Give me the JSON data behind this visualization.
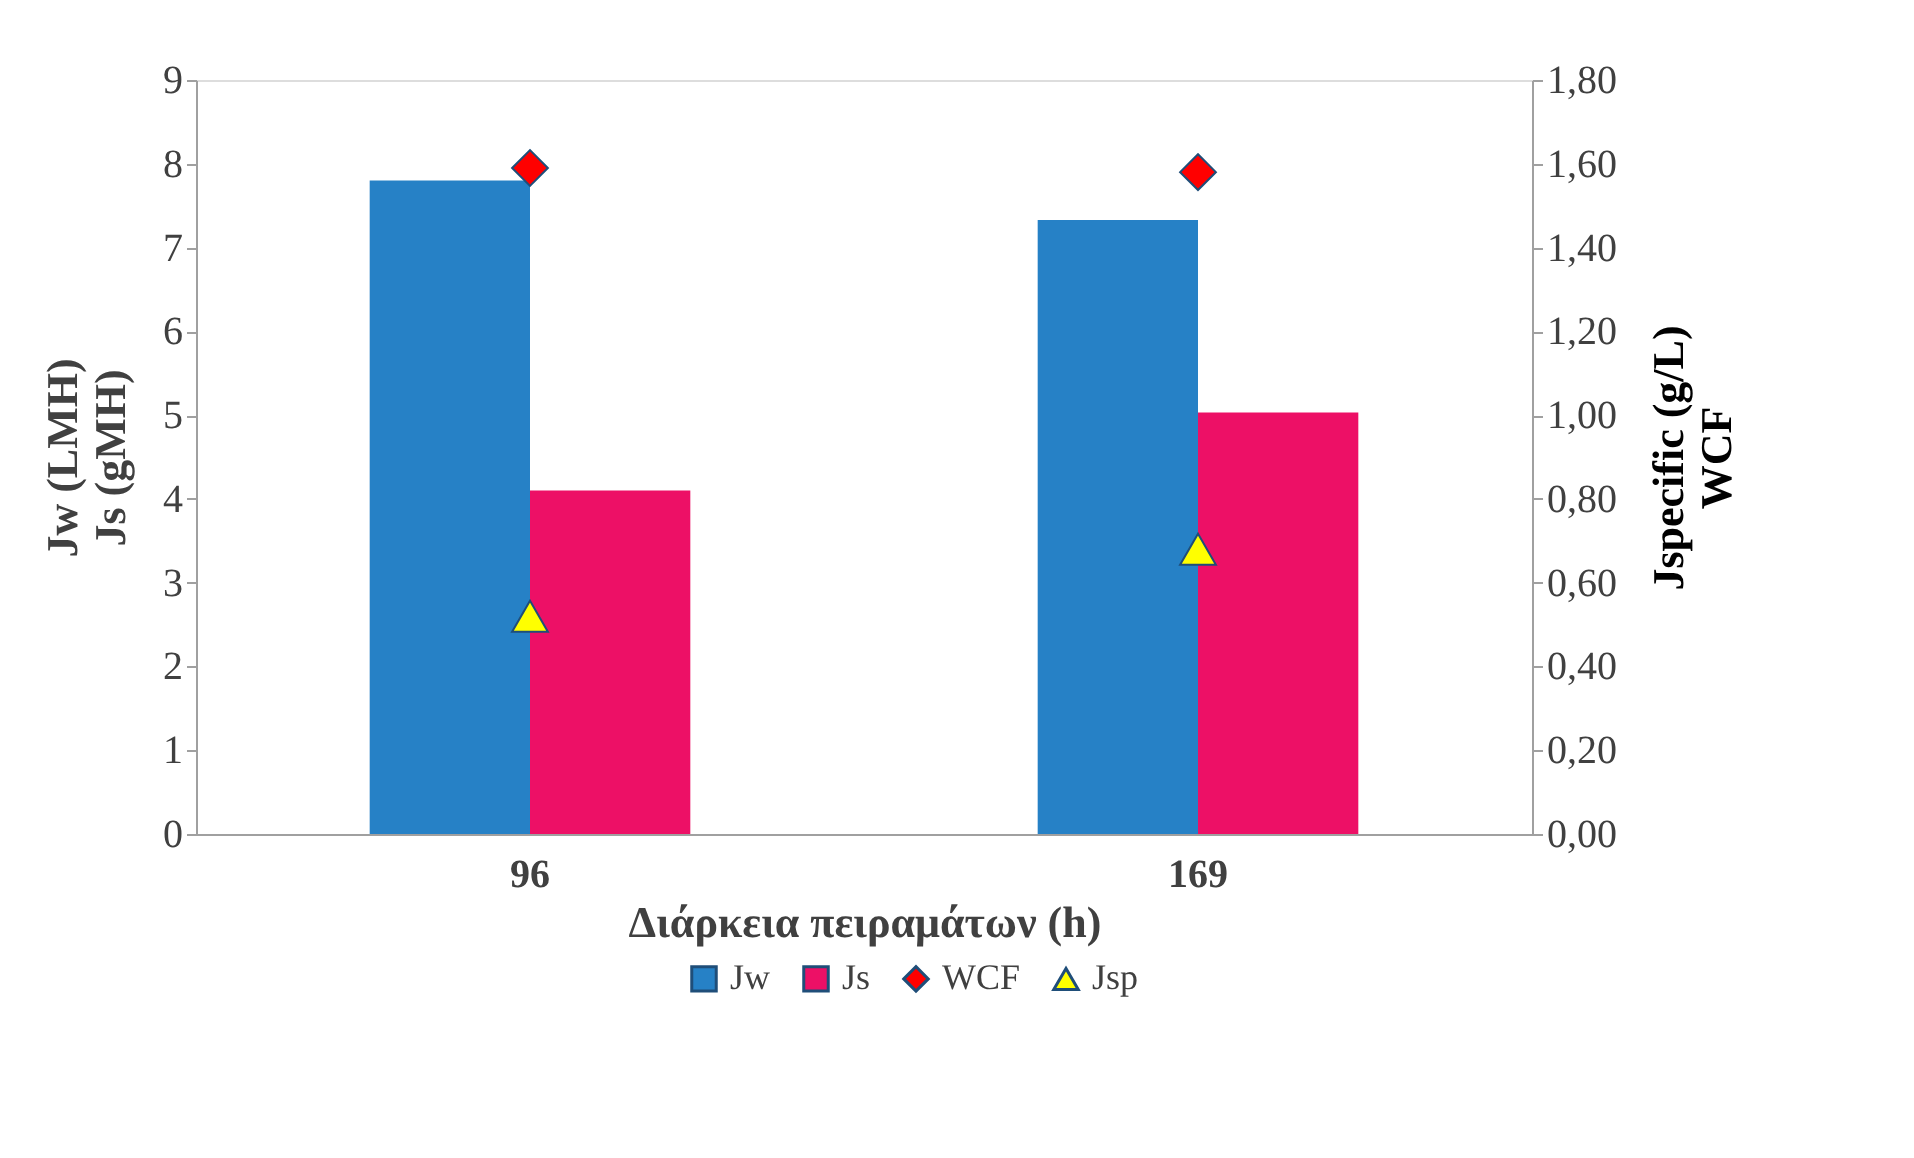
{
  "chart_data": {
    "type": "bar",
    "xlabel": "Διάρκεια πειραμάτων (h)",
    "ylabel": "Jw (LMH)\nJs (gMH)",
    "y2label": "Jspecific (g/L)\nWCF",
    "categories": [
      "96",
      "169"
    ],
    "series": [
      {
        "name": "Jw",
        "color": "#2681c6",
        "values": [
          7.8,
          7.33
        ]
      },
      {
        "name": "Js",
        "color": "#ed1066",
        "values": [
          4.1,
          5.03
        ]
      },
      {
        "name": "WCF",
        "type": "scatter",
        "axis": "y2",
        "marker": "diamond",
        "color": "#ff0000",
        "values": [
          1.59,
          1.58
        ]
      },
      {
        "name": "Jsp",
        "type": "scatter",
        "axis": "y2",
        "marker": "triangle",
        "color": "#ffff00",
        "values": [
          0.52,
          0.68
        ]
      }
    ],
    "ylim": [
      0,
      9
    ],
    "yticks": [
      0,
      1,
      2,
      3,
      4,
      5,
      6,
      7,
      8,
      9
    ],
    "y2lim": [
      0,
      1.8
    ],
    "y2ticks": [
      {
        "value": 0,
        "label": "0,00"
      },
      {
        "value": 0.2,
        "label": "0,20"
      },
      {
        "value": 0.4,
        "label": "0,40"
      },
      {
        "value": 0.6,
        "label": "0,60"
      },
      {
        "value": 0.8,
        "label": "0,80"
      },
      {
        "value": 1.0,
        "label": "1,00"
      },
      {
        "value": 1.2,
        "label": "1,20"
      },
      {
        "value": 1.4,
        "label": "1,40"
      },
      {
        "value": 1.6,
        "label": "1,60"
      },
      {
        "value": 1.8,
        "label": "1,80"
      }
    ],
    "grid": false,
    "legend": "bottom"
  }
}
